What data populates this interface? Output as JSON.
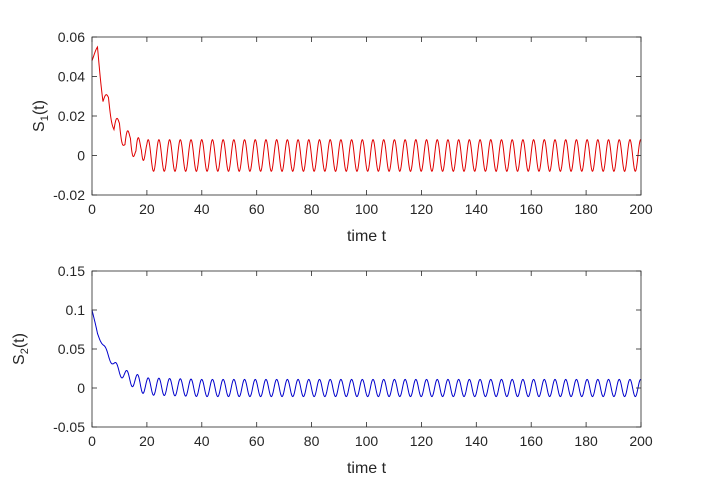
{
  "chart_data": [
    {
      "type": "line",
      "title": "",
      "xlabel": "time t",
      "ylabel": "S",
      "ylabel_sub": "1",
      "ylabel_suffix": "(t)",
      "xlim": [
        0,
        200
      ],
      "ylim": [
        -0.02,
        0.06
      ],
      "xticks": [
        0,
        20,
        40,
        60,
        80,
        100,
        120,
        140,
        160,
        180,
        200
      ],
      "xtick_labels": [
        "0",
        "20",
        "40",
        "60",
        "80",
        "100",
        "120",
        "140",
        "160",
        "180",
        "200"
      ],
      "yticks": [
        -0.02,
        0,
        0.02,
        0.04,
        0.06
      ],
      "ytick_labels": [
        "-0.02",
        "0",
        "0.02",
        "0.04",
        "0.06"
      ],
      "grid": false,
      "color": "#e00000",
      "series": [
        {
          "x": [
            0,
            2,
            4,
            6,
            8,
            10,
            12,
            14,
            16,
            18,
            20,
            40,
            60,
            80,
            100,
            120,
            140,
            160,
            180,
            200
          ],
          "values": [
            0.048,
            0.055,
            0.027,
            0.03,
            0.012,
            0.018,
            0.003,
            0.012,
            -0.002,
            0.008,
            0.0,
            0.0,
            0.0,
            0.0,
            0.0,
            0.0,
            0.0,
            0.0,
            0.0,
            0.0
          ],
          "oscillation_amplitude": 0.008,
          "oscillation_period": 3.9
        }
      ]
    },
    {
      "type": "line",
      "title": "",
      "xlabel": "time t",
      "ylabel": "S",
      "ylabel_sub": "2",
      "ylabel_suffix": "(t)",
      "xlim": [
        0,
        200
      ],
      "ylim": [
        -0.05,
        0.15
      ],
      "xticks": [
        0,
        20,
        40,
        60,
        80,
        100,
        120,
        140,
        160,
        180,
        200
      ],
      "xtick_labels": [
        "0",
        "20",
        "40",
        "60",
        "80",
        "100",
        "120",
        "140",
        "160",
        "180",
        "200"
      ],
      "yticks": [
        -0.05,
        0,
        0.05,
        0.1,
        0.15
      ],
      "ytick_labels": [
        "-0.05",
        "0",
        "0.05",
        "0.1",
        "0.15"
      ],
      "grid": false,
      "color": "#0000cc",
      "series": [
        {
          "x": [
            0,
            2,
            4,
            6,
            8,
            10,
            12,
            14,
            16,
            18,
            20,
            40,
            60,
            80,
            100,
            120,
            140,
            160,
            180,
            200
          ],
          "values": [
            0.1,
            0.07,
            0.055,
            0.042,
            0.03,
            0.022,
            0.016,
            0.012,
            0.008,
            0.005,
            0.002,
            0.0,
            0.0,
            0.0,
            0.0,
            0.0,
            0.0,
            0.0,
            0.0,
            0.0
          ],
          "oscillation_amplitude": 0.011,
          "oscillation_period": 3.9
        }
      ]
    }
  ]
}
